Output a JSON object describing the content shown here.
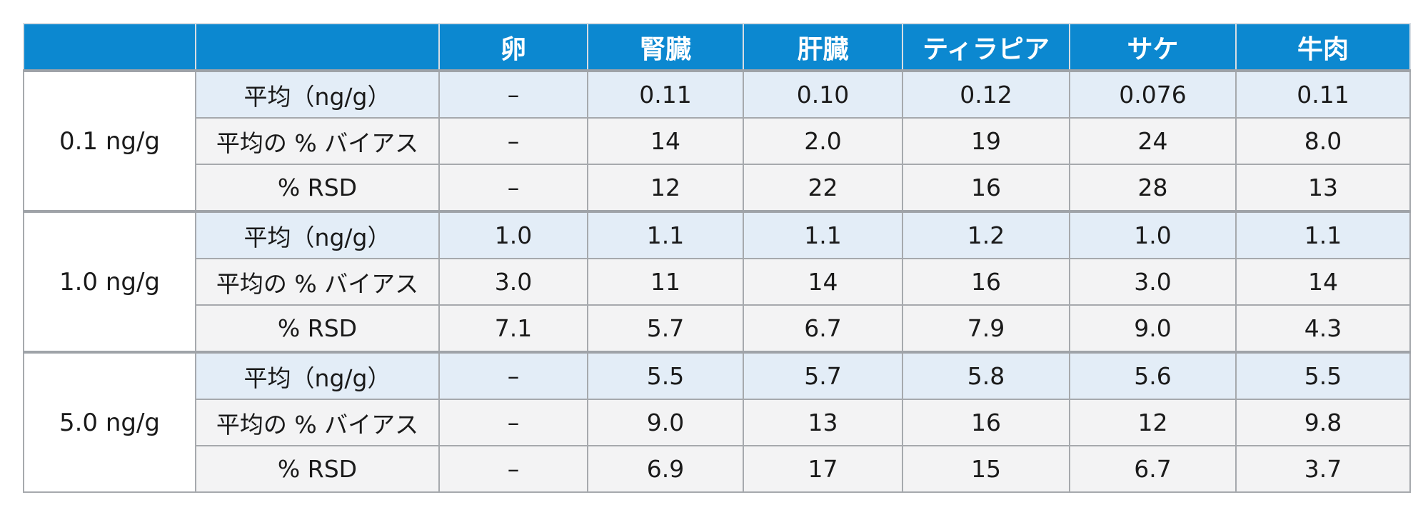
{
  "header": {
    "blank_1": "",
    "blank_2": "",
    "columns": [
      "卵",
      "腎臓",
      "肝臓",
      "ティラピア",
      "サケ",
      "牛肉"
    ]
  },
  "groups": [
    {
      "level": "0.1 ng/g",
      "rows": [
        {
          "metric": "平均（ng/g）",
          "values": [
            "–",
            "0.11",
            "0.10",
            "0.12",
            "0.076",
            "0.11"
          ]
        },
        {
          "metric": "平均の % バイアス",
          "values": [
            "–",
            "14",
            "2.0",
            "19",
            "24",
            "8.0"
          ]
        },
        {
          "metric": "% RSD",
          "values": [
            "–",
            "12",
            "22",
            "16",
            "28",
            "13"
          ]
        }
      ]
    },
    {
      "level": "1.0 ng/g",
      "rows": [
        {
          "metric": "平均（ng/g）",
          "values": [
            "1.0",
            "1.1",
            "1.1",
            "1.2",
            "1.0",
            "1.1"
          ]
        },
        {
          "metric": "平均の % バイアス",
          "values": [
            "3.0",
            "11",
            "14",
            "16",
            "3.0",
            "14"
          ]
        },
        {
          "metric": "% RSD",
          "values": [
            "7.1",
            "5.7",
            "6.7",
            "7.9",
            "9.0",
            "4.3"
          ]
        }
      ]
    },
    {
      "level": "5.0 ng/g",
      "rows": [
        {
          "metric": "平均（ng/g）",
          "values": [
            "–",
            "5.5",
            "5.7",
            "5.8",
            "5.6",
            "5.5"
          ]
        },
        {
          "metric": "平均の % バイアス",
          "values": [
            "–",
            "9.0",
            "13",
            "16",
            "12",
            "9.8"
          ]
        },
        {
          "metric": "% RSD",
          "values": [
            "–",
            "6.9",
            "17",
            "15",
            "6.7",
            "3.7"
          ]
        }
      ]
    }
  ],
  "colors": {
    "header_bg": "#0c88d0",
    "mean_row_bg": "#e3edf7",
    "other_row_bg": "#f3f3f4",
    "border": "#a6a9ad"
  }
}
